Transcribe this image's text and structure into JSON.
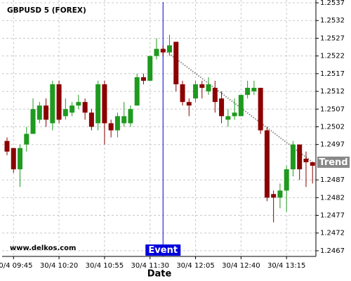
{
  "chart_data": {
    "type": "candlestick",
    "title": "GBPUSD 5 (FOREX)",
    "x_label": "Date",
    "watermark": "www.delkos.com",
    "categories": [
      null,
      "30/4 09:45",
      null,
      null,
      null,
      null,
      null,
      null,
      "30/4 10:20",
      null,
      null,
      null,
      null,
      null,
      null,
      "30/4 10:55",
      null,
      null,
      null,
      null,
      null,
      null,
      "30/4 11:30",
      null,
      null,
      null,
      null,
      null,
      null,
      "30/4 12:05",
      null,
      null,
      null,
      null,
      null,
      null,
      "30/4 12:40",
      null,
      null,
      null,
      null,
      null,
      null,
      "30/4 13:15",
      null,
      null,
      null,
      null
    ],
    "open": [
      1.2498,
      1.2496,
      1.249,
      1.2497,
      1.25,
      1.2504,
      1.2508,
      1.2503,
      1.2514,
      1.2505,
      1.2506,
      1.2508,
      1.2509,
      1.2506,
      1.2503,
      1.2514,
      1.2503,
      1.2501,
      1.2503,
      1.2503,
      1.2508,
      1.2516,
      1.2515,
      1.2522,
      1.2524,
      1.2523,
      1.2526,
      1.2514,
      1.2509,
      1.251,
      1.2514,
      1.2512,
      1.2513,
      1.251,
      1.2504,
      1.2505,
      1.2505,
      1.2511,
      1.2512,
      1.2513,
      1.2501,
      1.2483,
      1.2482,
      1.2484,
      1.249,
      1.2497,
      1.2493,
      1.2492
    ],
    "high": [
      1.2499,
      1.2496,
      1.2497,
      1.2502,
      1.251,
      1.2509,
      1.251,
      1.2515,
      1.2515,
      1.251,
      1.2509,
      1.2511,
      1.251,
      1.2507,
      1.2515,
      1.2515,
      1.2504,
      1.2506,
      1.2509,
      1.2508,
      1.2517,
      1.2517,
      1.2522,
      1.2527,
      1.2525,
      1.2528,
      1.2526,
      1.2515,
      1.251,
      1.2515,
      1.2515,
      1.2516,
      1.2515,
      1.2512,
      1.2507,
      1.251,
      1.2511,
      1.2515,
      1.2515,
      1.2513,
      1.2502,
      1.2484,
      1.2486,
      1.2491,
      1.2498,
      1.2497,
      1.2495,
      1.2492
    ],
    "low": [
      1.2494,
      1.2489,
      1.2485,
      1.2495,
      1.25,
      1.2503,
      1.2502,
      1.2501,
      1.2503,
      1.2504,
      1.2505,
      1.2507,
      1.2504,
      1.2501,
      1.2501,
      1.2497,
      1.2499,
      1.2499,
      1.2502,
      1.2502,
      1.2508,
      1.2514,
      1.2515,
      1.2521,
      1.2522,
      1.2522,
      1.2512,
      1.2508,
      1.2505,
      1.2509,
      1.251,
      1.2511,
      1.2506,
      1.2503,
      1.2502,
      1.2504,
      1.2505,
      1.251,
      1.2511,
      1.25,
      1.2481,
      1.2475,
      1.2479,
      1.2478,
      1.2488,
      1.2487,
      1.2485,
      1.2486
    ],
    "close": [
      1.2495,
      1.249,
      1.2496,
      1.25,
      1.2507,
      1.2508,
      1.2504,
      1.2514,
      1.2504,
      1.2507,
      1.2508,
      1.2509,
      1.2506,
      1.2502,
      1.2514,
      1.2503,
      1.2501,
      1.2505,
      1.2505,
      1.2507,
      1.2516,
      1.2515,
      1.2522,
      1.2524,
      1.2523,
      1.2525,
      1.2514,
      1.2509,
      1.2508,
      1.2514,
      1.2513,
      1.2514,
      1.2509,
      1.2505,
      1.2505,
      1.2506,
      1.2511,
      1.2513,
      1.2513,
      1.2501,
      1.2482,
      1.2482,
      1.2484,
      1.249,
      1.2497,
      1.249,
      1.2492,
      1.2491
    ],
    "up_color": "#1e9a1e",
    "down_color": "#8b0000",
    "ylim": [
      1.24654,
      1.25378
    ],
    "yticks": [
      1.2537,
      1.2532,
      1.2527,
      1.2522,
      1.2517,
      1.2512,
      1.2507,
      1.2502,
      1.2497,
      1.2487,
      1.2482,
      1.2477,
      1.2472,
      1.2467
    ],
    "grid": true,
    "event": {
      "label": "Event",
      "index": 24,
      "color": "#0000dd"
    },
    "trend": {
      "label": "Trend",
      "start": {
        "index": 24,
        "value": 1.2524
      },
      "end": {
        "index": 47,
        "value": 1.2492
      },
      "color": "#888888"
    }
  }
}
